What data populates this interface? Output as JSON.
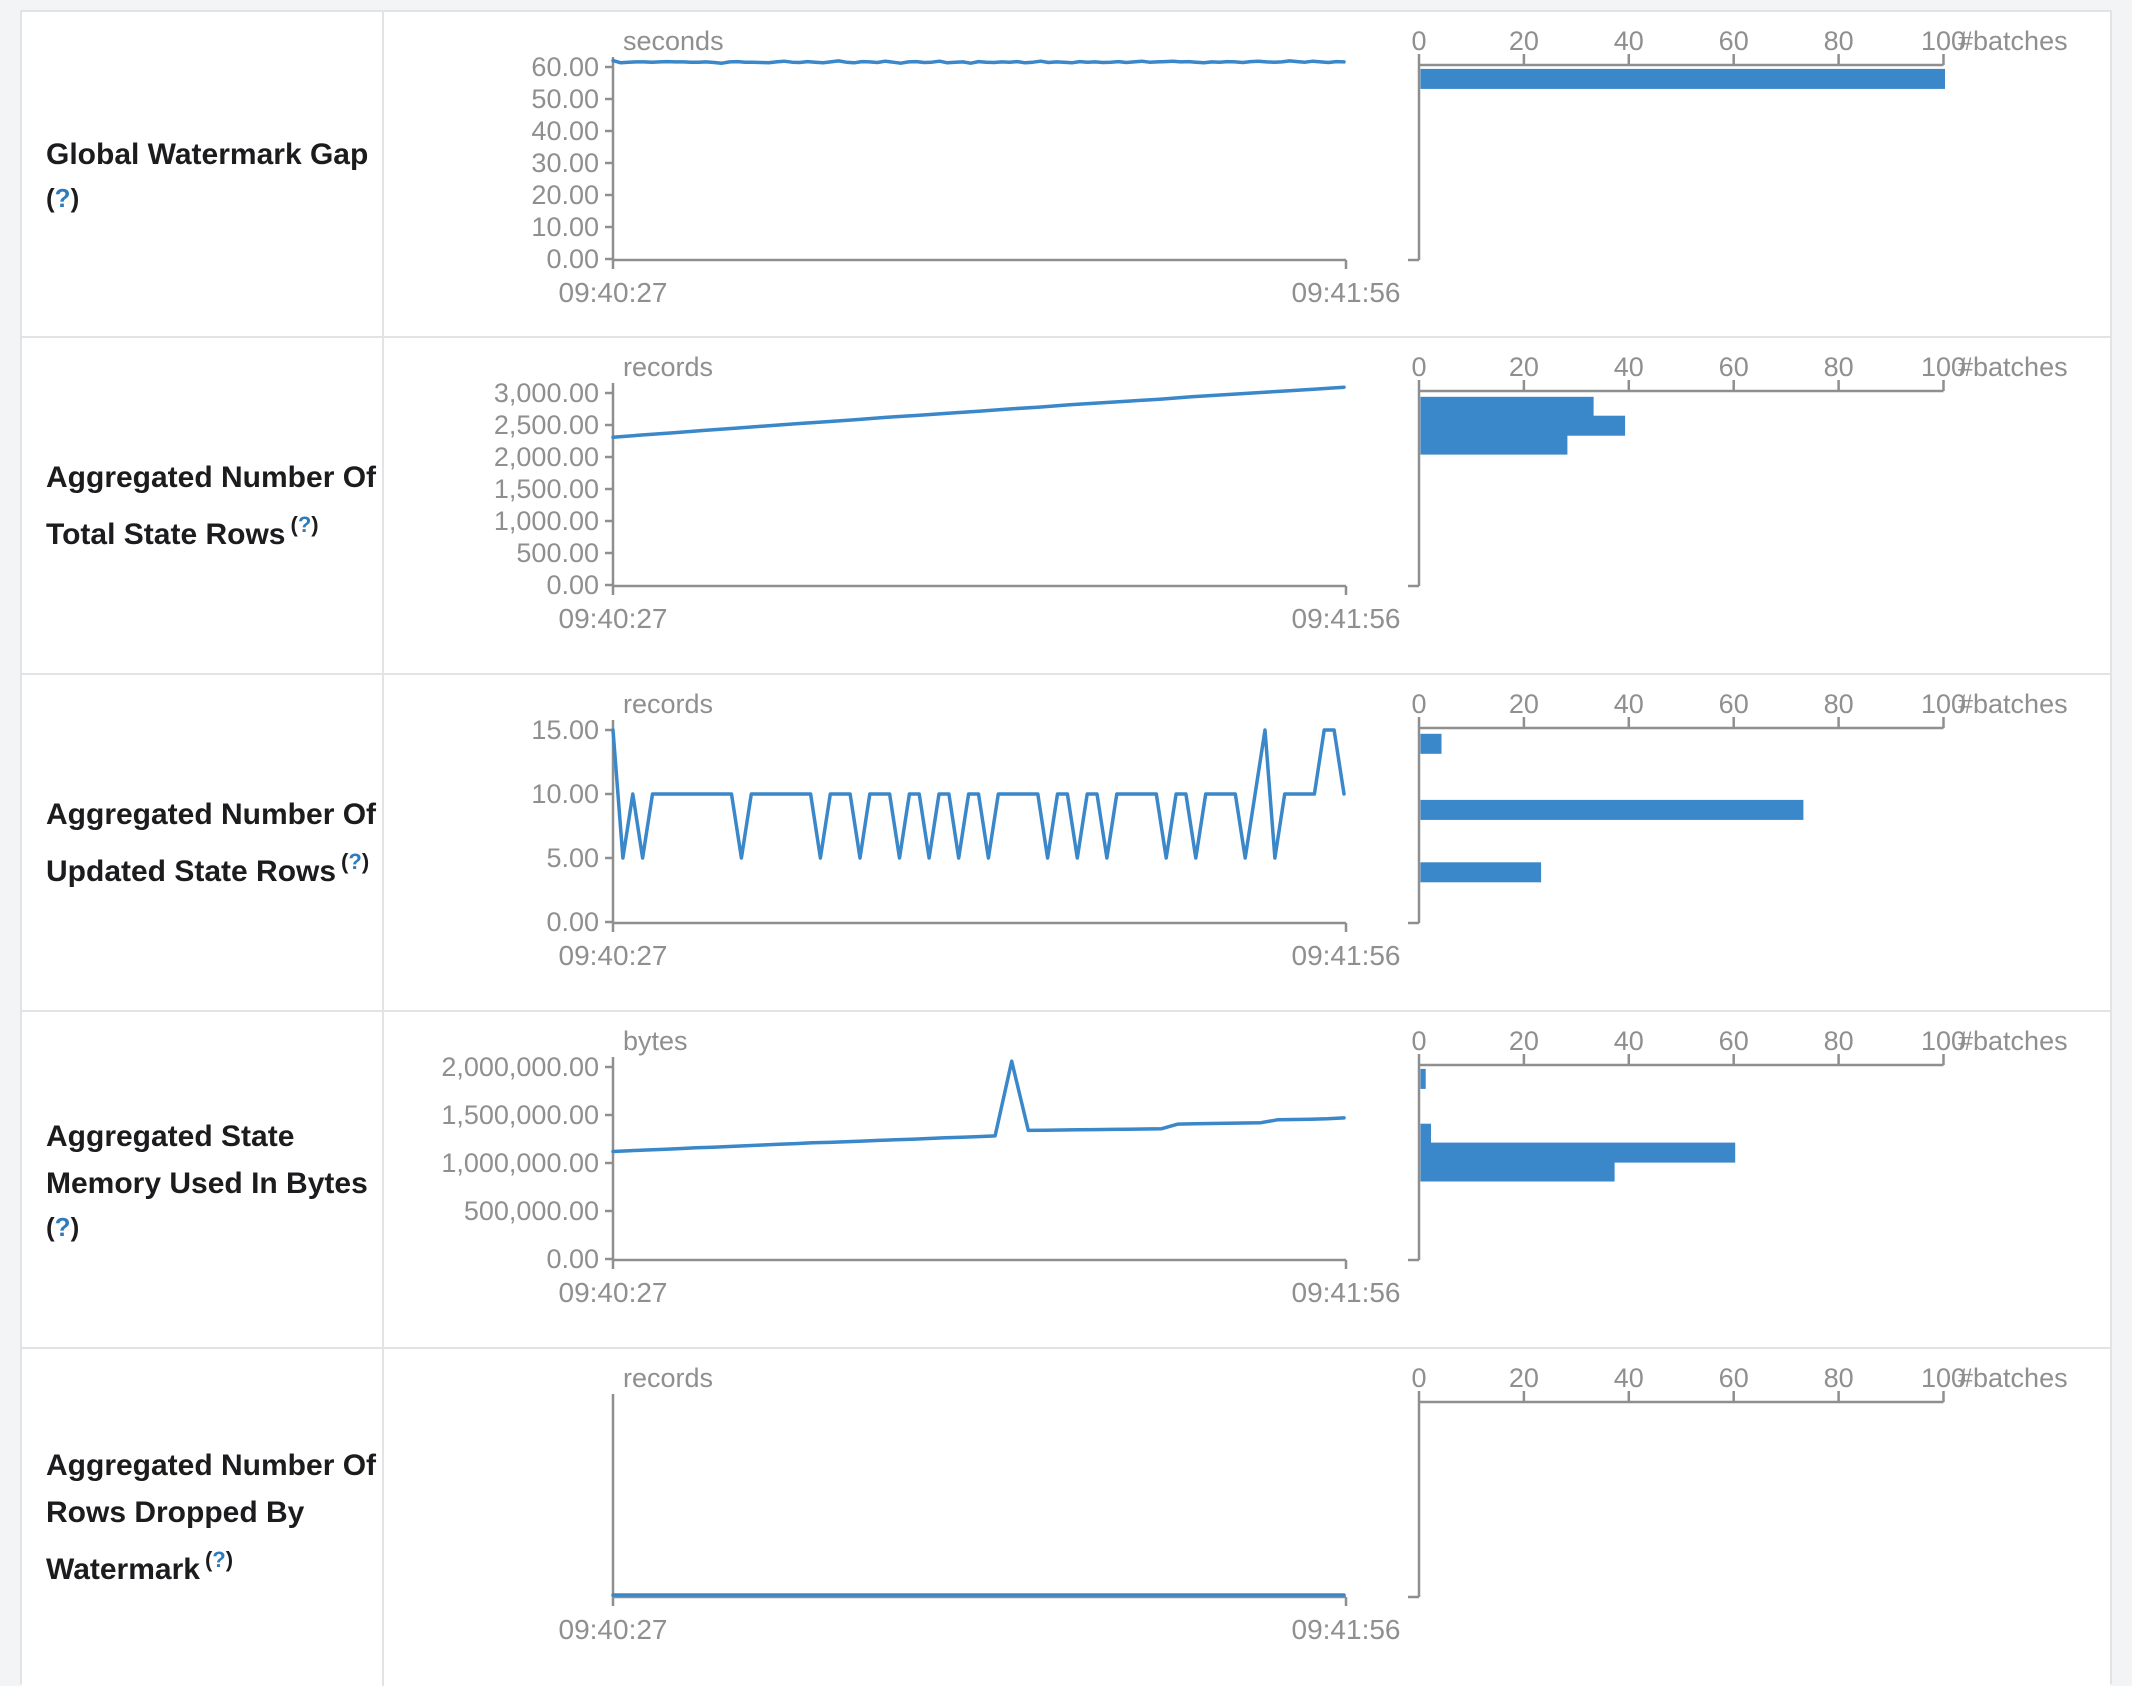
{
  "colors": {
    "series_blue": "#3a87c9",
    "axis_gray": "#8f8f8f",
    "label_text": "#1c1c1e",
    "help_link_blue": "#2e7bbb",
    "table_border": "#e2e3e5",
    "page_background": "#f3f4f6"
  },
  "help_marker": "(?)",
  "x_axis": {
    "start_label": "09:40:27",
    "end_label": "09:41:56"
  },
  "histogram_axis": {
    "tick_labels": [
      "0",
      "20",
      "40",
      "60",
      "80",
      "100"
    ],
    "tick_values": [
      0,
      20,
      40,
      60,
      80,
      100
    ],
    "unit_label": "#batches",
    "xlim": [
      0,
      100
    ]
  },
  "chart_data": {
    "rows": [
      {
        "id": "global-watermark-gap",
        "label_lines": [
          "Global Watermark Gap"
        ],
        "help_inline": false,
        "line_chart": {
          "type": "line",
          "unit": "seconds",
          "x_start": "09:40:27",
          "x_end": "09:41:56",
          "y_tick_labels": [
            "60.00",
            "50.00",
            "40.00",
            "30.00",
            "20.00",
            "10.00",
            "0.00"
          ],
          "y_tick_values": [
            60,
            50,
            40,
            30,
            20,
            10,
            0
          ],
          "y_top_tick": 60,
          "values": [
            62.0,
            61.3,
            61.5,
            61.6,
            61.6,
            61.5,
            61.6,
            61.7,
            61.6,
            61.6,
            61.5,
            61.5,
            61.6,
            61.4,
            61.2,
            61.6,
            61.7,
            61.5,
            61.5,
            61.4,
            61.3,
            61.6,
            61.8,
            61.5,
            61.4,
            61.7,
            61.5,
            61.3,
            61.6,
            61.9,
            61.5,
            61.3,
            61.7,
            61.6,
            61.4,
            61.8,
            61.5,
            61.2,
            61.6,
            61.7,
            61.4,
            61.5,
            61.8,
            61.3,
            61.5,
            61.6,
            61.2,
            61.7,
            61.5,
            61.4,
            61.6,
            61.5,
            61.7,
            61.3,
            61.5,
            61.8,
            61.4,
            61.6,
            61.5,
            61.3,
            61.7,
            61.5,
            61.6,
            61.4,
            61.5,
            61.7,
            61.4,
            61.6,
            61.8,
            61.5,
            61.6,
            61.7,
            61.8,
            61.6,
            61.7,
            61.5,
            61.3,
            61.6,
            61.5,
            61.7,
            61.6,
            61.4,
            61.7,
            61.8,
            61.6,
            61.5,
            61.6,
            61.9,
            61.7,
            61.5,
            61.8,
            61.6,
            61.4,
            61.7,
            61.6
          ]
        },
        "histogram": {
          "type": "bar",
          "bars": [
            {
              "count": 100,
              "top_frac": 0.01
            }
          ]
        }
      },
      {
        "id": "aggregated-total-state-rows",
        "label_lines": [
          "Aggregated Number Of",
          "Total State Rows"
        ],
        "help_inline": true,
        "line_chart": {
          "type": "line",
          "unit": "records",
          "x_start": "09:40:27",
          "x_end": "09:41:56",
          "y_tick_labels": [
            "3,000.00",
            "2,500.00",
            "2,000.00",
            "1,500.00",
            "1,000.00",
            "500.00",
            "0.00"
          ],
          "y_tick_values": [
            3000,
            2500,
            2000,
            1500,
            1000,
            500,
            0
          ],
          "y_top_tick": 3000,
          "values": [
            2310,
            2345,
            2380,
            2415,
            2450,
            2485,
            2520,
            2550,
            2585,
            2620,
            2650,
            2685,
            2715,
            2750,
            2780,
            2815,
            2845,
            2875,
            2905,
            2940,
            2970,
            3000,
            3030,
            3060,
            3090
          ]
        },
        "histogram": {
          "type": "bar",
          "bars": [
            {
              "count": 33,
              "top_frac": 0.02
            },
            {
              "count": 39,
              "top_frac": 0.12
            },
            {
              "count": 28,
              "top_frac": 0.22
            }
          ]
        }
      },
      {
        "id": "aggregated-updated-state-rows",
        "label_lines": [
          "Aggregated Number Of",
          "Updated State Rows"
        ],
        "help_inline": true,
        "line_chart": {
          "type": "line",
          "unit": "records",
          "x_start": "09:40:27",
          "x_end": "09:41:56",
          "y_tick_labels": [
            "15.00",
            "10.00",
            "5.00",
            "0.00"
          ],
          "y_tick_values": [
            15,
            10,
            5,
            0
          ],
          "y_top_tick": 15,
          "values": [
            15,
            5,
            10,
            5,
            10,
            10,
            10,
            10,
            10,
            10,
            10,
            10,
            10,
            5,
            10,
            10,
            10,
            10,
            10,
            10,
            10,
            5,
            10,
            10,
            10,
            5,
            10,
            10,
            10,
            5,
            10,
            10,
            5,
            10,
            10,
            5,
            10,
            10,
            5,
            10,
            10,
            10,
            10,
            10,
            5,
            10,
            10,
            5,
            10,
            10,
            5,
            10,
            10,
            10,
            10,
            10,
            5,
            10,
            10,
            5,
            10,
            10,
            10,
            10,
            5,
            10,
            15,
            5,
            10,
            10,
            10,
            10,
            15,
            15,
            10
          ]
        },
        "histogram": {
          "type": "bar",
          "bars": [
            {
              "count": 4,
              "top_frac": 0.02
            },
            {
              "count": 73,
              "top_frac": 0.37
            },
            {
              "count": 23,
              "top_frac": 0.7
            }
          ]
        }
      },
      {
        "id": "aggregated-state-memory-used",
        "label_lines": [
          "Aggregated State",
          "Memory Used In Bytes"
        ],
        "help_inline": false,
        "line_chart": {
          "type": "line",
          "unit": "bytes",
          "x_start": "09:40:27",
          "x_end": "09:41:56",
          "y_tick_labels": [
            "2,000,000.00",
            "1,500,000.00",
            "1,000,000.00",
            "500,000.00",
            "0.00"
          ],
          "y_tick_values": [
            2000000,
            1500000,
            1000000,
            500000,
            0
          ],
          "y_top_tick": 2000000,
          "values": [
            1120000,
            1128000,
            1135000,
            1142000,
            1150000,
            1158000,
            1165000,
            1172000,
            1180000,
            1188000,
            1195000,
            1202000,
            1210000,
            1215000,
            1222000,
            1228000,
            1235000,
            1242000,
            1248000,
            1255000,
            1262000,
            1268000,
            1275000,
            1282000,
            2060000,
            1340000,
            1342000,
            1344000,
            1346000,
            1348000,
            1350000,
            1352000,
            1354000,
            1356000,
            1405000,
            1408000,
            1411000,
            1414000,
            1417000,
            1420000,
            1450000,
            1453000,
            1456000,
            1460000,
            1470000
          ]
        },
        "histogram": {
          "type": "bar",
          "bars": [
            {
              "count": 1,
              "top_frac": 0.01
            },
            {
              "count": 2,
              "top_frac": 0.3
            },
            {
              "count": 60,
              "top_frac": 0.4
            },
            {
              "count": 37,
              "top_frac": 0.5
            }
          ]
        }
      },
      {
        "id": "aggregated-rows-dropped-by-watermark",
        "label_lines": [
          "Aggregated Number Of",
          "Rows Dropped By",
          "Watermark"
        ],
        "help_inline": true,
        "line_chart": {
          "type": "line",
          "unit": "records",
          "x_start": "09:40:27",
          "x_end": "09:41:56",
          "y_tick_labels": [],
          "y_tick_values": [],
          "y_top_tick": null,
          "values": [
            0,
            0,
            0,
            0,
            0,
            0,
            0,
            0,
            0,
            0,
            0,
            0,
            0,
            0,
            0,
            0,
            0,
            0,
            0,
            0
          ]
        },
        "histogram": {
          "type": "bar",
          "bars": []
        }
      }
    ]
  }
}
